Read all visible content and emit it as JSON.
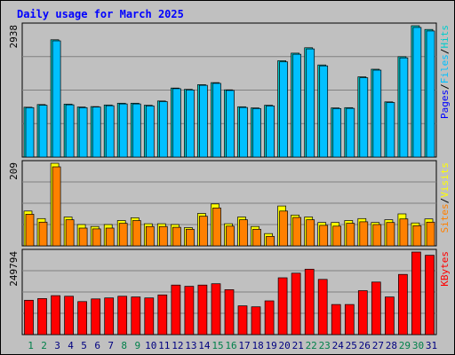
{
  "chart_data": {
    "type": "bar",
    "title": "Daily usage for March 2025",
    "categories": [
      "1",
      "2",
      "3",
      "4",
      "5",
      "6",
      "7",
      "8",
      "9",
      "10",
      "11",
      "12",
      "13",
      "14",
      "15",
      "16",
      "17",
      "18",
      "19",
      "20",
      "21",
      "22",
      "23",
      "24",
      "25",
      "26",
      "27",
      "28",
      "29",
      "30",
      "31"
    ],
    "weekend_days": [
      "1",
      "2",
      "8",
      "9",
      "15",
      "16",
      "22",
      "23",
      "29",
      "30"
    ],
    "panels": [
      {
        "name": "hits",
        "max_label": "2938",
        "ymax": 2938,
        "legend": [
          "Pages",
          "/",
          "Files",
          "/",
          "Hits"
        ],
        "series": [
          {
            "name": "Hits",
            "values": [
              1115,
              1175,
              2625,
              1185,
              1120,
              1130,
              1165,
              1205,
              1205,
              1160,
              1255,
              1545,
              1515,
              1620,
              1665,
              1505,
              1125,
              1100,
              1160,
              2155,
              2325,
              2445,
              2060,
              1100,
              1105,
              1795,
              1965,
              1235,
              2245,
              2938,
              2855
            ]
          },
          {
            "name": "Files",
            "values": [
              1105,
              1160,
              2600,
              1170,
              1105,
              1120,
              1150,
              1190,
              1190,
              1145,
              1240,
              1530,
              1500,
              1605,
              1650,
              1490,
              1110,
              1085,
              1145,
              2130,
              2300,
              2420,
              2040,
              1085,
              1090,
              1775,
              1945,
              1220,
              2220,
              2900,
              2820
            ]
          }
        ]
      },
      {
        "name": "visits",
        "max_label": "209",
        "ymax": 209,
        "legend": [
          "Sites",
          "/",
          "Visits"
        ],
        "series": [
          {
            "name": "Visits",
            "values": [
              88,
              69,
              209,
              73,
              54,
              49,
              54,
              64,
              71,
              56,
              56,
              54,
              46,
              82,
              106,
              56,
              73,
              49,
              31,
              101,
              78,
              73,
              59,
              59,
              64,
              69,
              59,
              66,
              81,
              58,
              68
            ]
          },
          {
            "name": "Sites",
            "values": [
              80,
              60,
              200,
              66,
              45,
              43,
              45,
              57,
              64,
              49,
              49,
              47,
              42,
              75,
              96,
              50,
              66,
              42,
              24,
              88,
              72,
              66,
              52,
              50,
              57,
              61,
              54,
              59,
              68,
              51,
              60
            ]
          }
        ]
      },
      {
        "name": "kbytes",
        "max_label": "249794",
        "ymax": 249794,
        "legend": [
          "KBytes"
        ],
        "series": [
          {
            "name": "KBytes",
            "values": [
              104000,
              109000,
              118000,
              116000,
              100000,
              108000,
              111000,
              116000,
              114000,
              111000,
              120000,
              150000,
              146000,
              150000,
              154000,
              136000,
              87000,
              84000,
              102000,
              172000,
              186000,
              198000,
              167000,
              91000,
              91000,
              133000,
              159000,
              114000,
              182000,
              249794,
              240000
            ]
          }
        ]
      }
    ],
    "colors": {
      "background": "#c0c0c0",
      "title": "#0000ff",
      "hits": "#00cccc",
      "files": "#00c0ff",
      "pages": "#0000ff",
      "visits": "#ffff00",
      "sites": "#ff8000",
      "kbytes": "#ff0000",
      "weekday_label": "#000080",
      "weekend_label": "#00804a"
    }
  }
}
